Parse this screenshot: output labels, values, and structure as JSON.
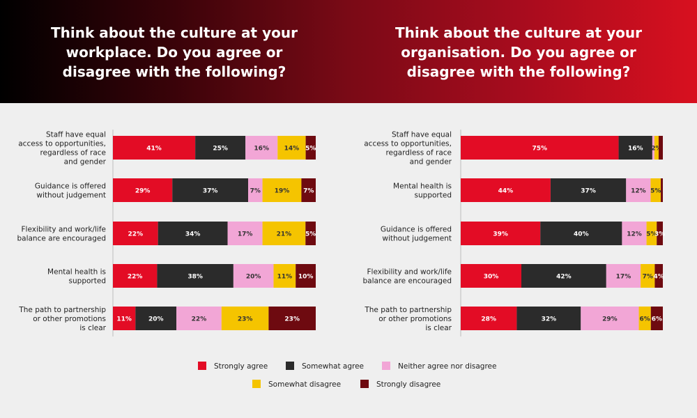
{
  "header": {
    "left_title": "Think about the culture at your workplace. Do you agree or disagree with the following?",
    "right_title": "Think about the culture at your organisation. Do you agree or disagree with the following?"
  },
  "colors": {
    "strongly_agree": "#e30c25",
    "somewhat_agree": "#2b2b2b",
    "neither": "#f2a6d6",
    "somewhat_disagree": "#f5c400",
    "strongly_disagree": "#6e0a10"
  },
  "legend": [
    {
      "label": "Strongly agree",
      "color": "#e30c25"
    },
    {
      "label": "Somewhat agree",
      "color": "#2b2b2b"
    },
    {
      "label": "Neither agree nor disagree",
      "color": "#f2a6d6"
    },
    {
      "label": "Somewhat disagree",
      "color": "#f5c400"
    },
    {
      "label": "Strongly disagree",
      "color": "#6e0a10"
    }
  ],
  "chart_data": [
    {
      "type": "bar",
      "orientation": "horizontal",
      "stacked": true,
      "title": "Think about the culture at your workplace. Do you agree or disagree with the following?",
      "categories": [
        "Staff have equal access to opportunities, regardless of race and gender",
        "Guidance is offered without judgement",
        "Flexibility and work/life balance are encouraged",
        "Mental health is supported",
        "The path to partnership or other promotions is clear"
      ],
      "category_lines": [
        [
          "Staff have equal",
          "access to opportunities,",
          "regardless of race",
          "and gender"
        ],
        [
          "Guidance is offered",
          "without judgement"
        ],
        [
          "Flexibility and work/life",
          "balance are encouraged"
        ],
        [
          "Mental health is",
          "supported"
        ],
        [
          "The path to partnership",
          "or other promotions",
          "is clear"
        ]
      ],
      "series": [
        {
          "name": "Strongly agree",
          "values": [
            41,
            29,
            22,
            22,
            11
          ]
        },
        {
          "name": "Somewhat agree",
          "values": [
            25,
            37,
            34,
            38,
            20
          ]
        },
        {
          "name": "Neither agree nor disagree",
          "values": [
            16,
            7,
            17,
            20,
            22
          ]
        },
        {
          "name": "Somewhat disagree",
          "values": [
            14,
            19,
            21,
            11,
            23
          ]
        },
        {
          "name": "Strongly disagree",
          "values": [
            5,
            7,
            5,
            10,
            23
          ]
        }
      ],
      "value_labels": [
        [
          "41%",
          "25%",
          "16%",
          "14%",
          "5%"
        ],
        [
          "29%",
          "37%",
          "7%",
          "19%",
          "7%"
        ],
        [
          "22%",
          "34%",
          "17%",
          "21%",
          "5%"
        ],
        [
          "22%",
          "38%",
          "20%",
          "11%",
          "10%"
        ],
        [
          "11%",
          "20%",
          "22%",
          "23%",
          "23%"
        ]
      ],
      "xlim": [
        0,
        100
      ]
    },
    {
      "type": "bar",
      "orientation": "horizontal",
      "stacked": true,
      "title": "Think about the culture at your organisation. Do you agree or disagree with the following?",
      "categories": [
        "Staff have equal access to opportunities, regardless of race and gender",
        "Mental health is supported",
        "Guidance is offered without judgement",
        "Flexibility and work/life balance are encouraged",
        "The path to partnership or other promotions is clear"
      ],
      "category_lines": [
        [
          "Staff have equal",
          "access to opportunities,",
          "regardless of race",
          "and gender"
        ],
        [
          "Mental health is",
          "supported"
        ],
        [
          "Guidance is offered",
          "without judgement"
        ],
        [
          "Flexibility and work/life",
          "balance are encouraged"
        ],
        [
          "The path to partnership",
          "or other promotions",
          "is clear"
        ]
      ],
      "series": [
        {
          "name": "Strongly agree",
          "values": [
            75,
            44,
            39,
            30,
            28
          ]
        },
        {
          "name": "Somewhat agree",
          "values": [
            16,
            37,
            40,
            42,
            32
          ]
        },
        {
          "name": "Neither agree nor disagree",
          "values": [
            1,
            12,
            12,
            17,
            29
          ]
        },
        {
          "name": "Somewhat disagree",
          "values": [
            2,
            5,
            5,
            7,
            6
          ]
        },
        {
          "name": "Strongly disagree",
          "values": [
            2,
            1,
            3,
            4,
            6
          ]
        }
      ],
      "value_labels": [
        [
          "75%",
          "16%",
          "",
          "2%",
          ""
        ],
        [
          "44%",
          "37%",
          "12%",
          "5%",
          ""
        ],
        [
          "39%",
          "40%",
          "12%",
          "5%",
          "3%"
        ],
        [
          "30%",
          "42%",
          "17%",
          "7%",
          "4%"
        ],
        [
          "28%",
          "32%",
          "29%",
          "6%",
          "6%"
        ]
      ],
      "xlim": [
        0,
        100
      ]
    }
  ]
}
